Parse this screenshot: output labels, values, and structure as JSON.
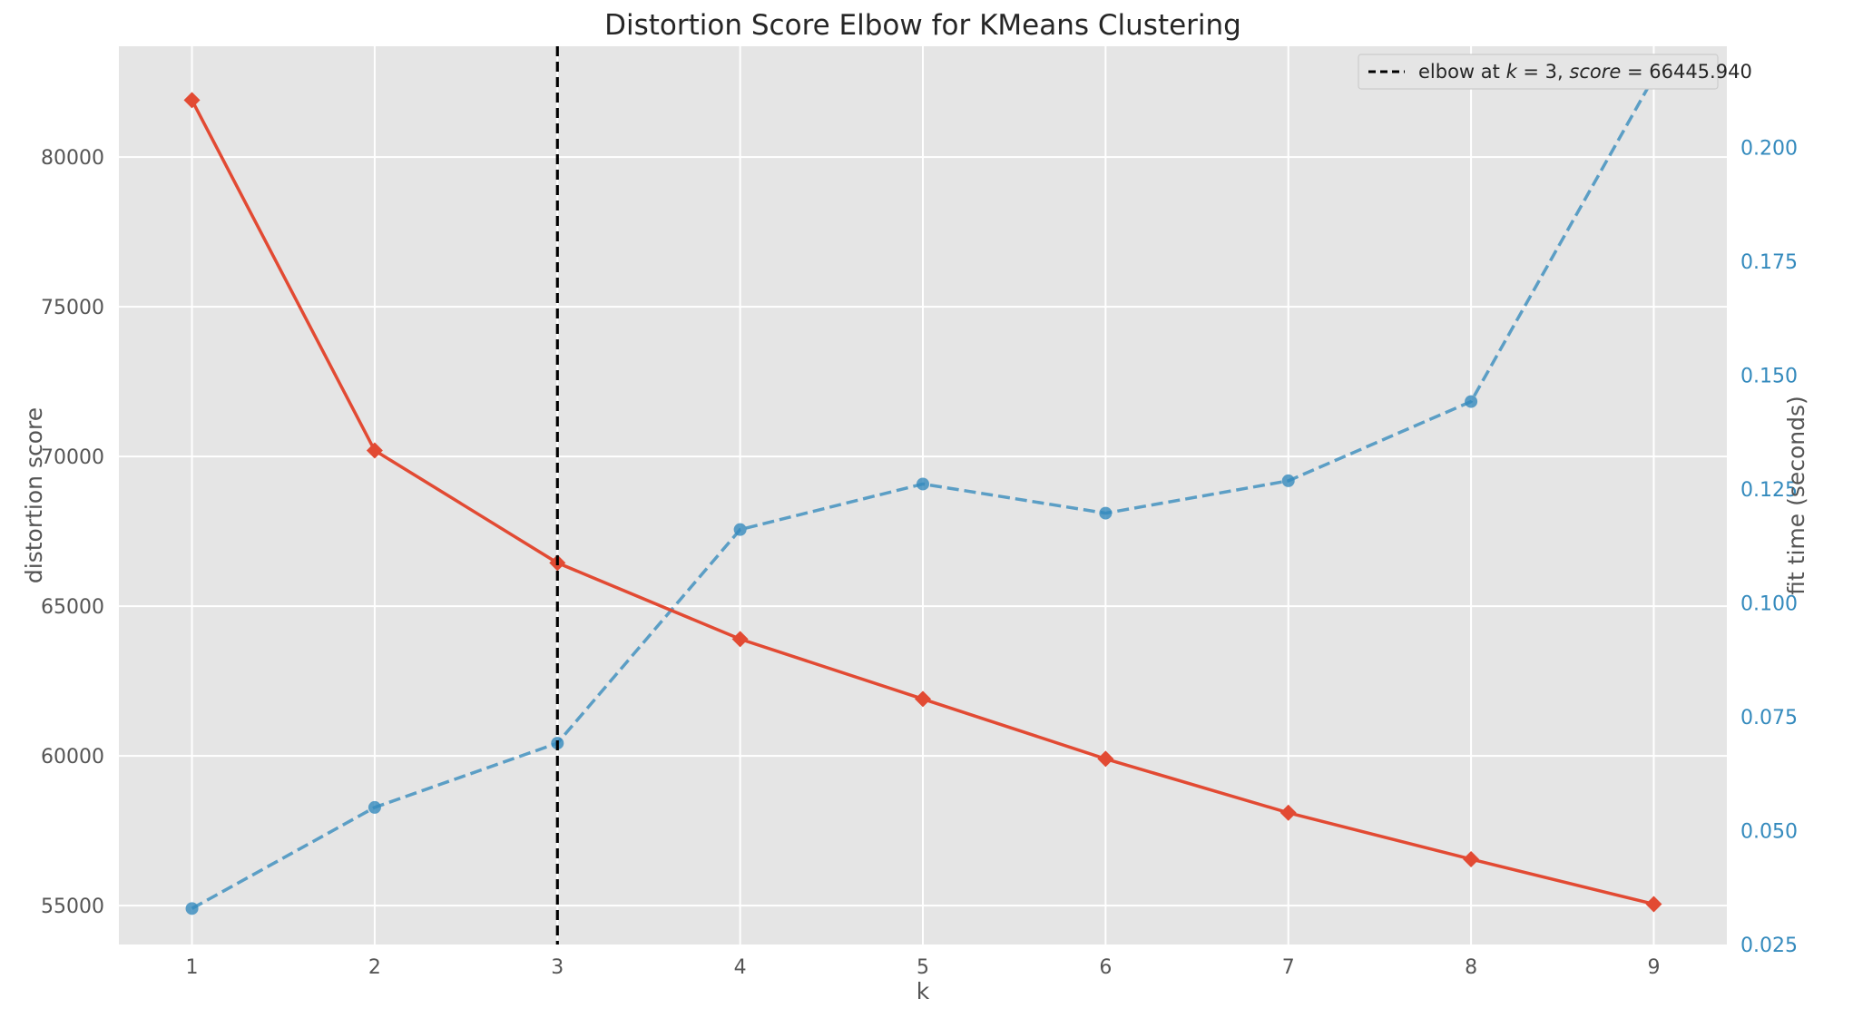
{
  "chart_data": {
    "type": "line",
    "title": "Distortion Score Elbow for KMeans Clustering",
    "xlabel": "k",
    "ylabel": "distortion score",
    "y2label": "fit time (seconds)",
    "x": [
      1,
      2,
      3,
      4,
      5,
      6,
      7,
      8,
      9
    ],
    "x_ticks": [
      "1",
      "2",
      "3",
      "4",
      "5",
      "6",
      "7",
      "8",
      "9"
    ],
    "xlim": [
      0.6,
      9.4
    ],
    "ylim": [
      53700,
      83700
    ],
    "y_ticks": [
      55000,
      60000,
      65000,
      70000,
      75000,
      80000
    ],
    "y2lim": [
      0.025,
      0.2222
    ],
    "y2_ticks": [
      "0.025",
      "0.050",
      "0.075",
      "0.100",
      "0.125",
      "0.150",
      "0.175",
      "0.200"
    ],
    "grid": true,
    "legend_position": "top-right",
    "series": [
      {
        "values": [
          81900,
          70200,
          66446,
          63900,
          61900,
          59900,
          58100,
          56550,
          55050
        ],
        "color": "#e24a33",
        "marker": "diamond",
        "line_style": "solid",
        "axis": "left"
      },
      {
        "values": [
          0.0329,
          0.0551,
          0.0692,
          0.1161,
          0.1261,
          0.1197,
          0.1268,
          0.1442,
          0.2154
        ],
        "color": "#348abd",
        "marker": "circle",
        "line_style": "dashed",
        "axis": "right"
      }
    ],
    "elbow": {
      "k": 3,
      "score": "66445.940",
      "legend_prefix": "elbow at ",
      "legend_k_symbol": "k",
      "legend_mid": " = 3, ",
      "legend_score_symbol": "score",
      "legend_suffix": " = 66445.940"
    },
    "colors": {
      "plot_bg": "#e5e5e5",
      "grid": "#ffffff",
      "fit_time_axis": "#348abd",
      "elbow_line": "#000000"
    }
  }
}
